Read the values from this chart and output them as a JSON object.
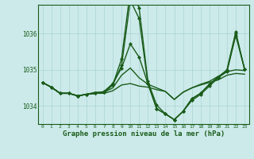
{
  "background_color": "#cceaea",
  "grid_color": "#aad4d4",
  "line_color": "#1a5c1a",
  "marker_color": "#1a5c1a",
  "xlabel": "Graphe pression niveau de la mer (hPa)",
  "xlabel_fontsize": 6.5,
  "xlim": [
    -0.5,
    23.5
  ],
  "ylim": [
    1033.5,
    1036.8
  ],
  "yticks": [
    1034,
    1035,
    1036
  ],
  "ytick_labels": [
    "1034",
    "1035",
    "1036"
  ],
  "xticks": [
    0,
    1,
    2,
    3,
    4,
    5,
    6,
    7,
    8,
    9,
    10,
    11,
    12,
    13,
    14,
    15,
    16,
    17,
    18,
    19,
    20,
    21,
    22,
    23
  ],
  "series": [
    {
      "y": [
        1034.65,
        1034.52,
        1034.35,
        1034.35,
        1034.28,
        1034.32,
        1034.35,
        1034.35,
        1034.42,
        1034.58,
        1034.62,
        1034.55,
        1034.52,
        1034.45,
        1034.4,
        1034.18,
        1034.38,
        1034.5,
        1034.58,
        1034.65,
        1034.72,
        1034.85,
        1034.9,
        1034.88
      ],
      "markers": false,
      "lw": 1.0
    },
    {
      "y": [
        1034.65,
        1034.52,
        1034.35,
        1034.35,
        1034.28,
        1034.32,
        1034.38,
        1034.38,
        1034.5,
        1034.85,
        1035.05,
        1034.78,
        1034.6,
        1034.5,
        1034.4,
        1034.18,
        1034.38,
        1034.5,
        1034.6,
        1034.68,
        1034.82,
        1034.95,
        1035.0,
        1034.98
      ],
      "markers": false,
      "lw": 1.0
    },
    {
      "y": [
        1034.65,
        1034.52,
        1034.35,
        1034.35,
        1034.28,
        1034.32,
        1034.35,
        1034.4,
        1034.62,
        1035.05,
        1035.72,
        1035.35,
        1034.62,
        1033.92,
        1033.78,
        1033.62,
        1033.85,
        1034.15,
        1034.32,
        1034.55,
        1034.78,
        1034.95,
        1035.95,
        1035.02
      ],
      "markers": true,
      "lw": 1.0
    },
    {
      "y": [
        1034.65,
        1034.52,
        1034.35,
        1034.35,
        1034.28,
        1034.32,
        1034.35,
        1034.38,
        1034.58,
        1035.12,
        1036.92,
        1036.42,
        1034.62,
        1033.92,
        1033.78,
        1033.62,
        1033.85,
        1034.2,
        1034.35,
        1034.6,
        1034.8,
        1034.98,
        1036.0,
        1035.02
      ],
      "markers": true,
      "lw": 1.0
    },
    {
      "y": [
        1034.65,
        1034.52,
        1034.35,
        1034.35,
        1034.28,
        1034.32,
        1034.35,
        1034.38,
        1034.58,
        1035.3,
        1037.2,
        1036.72,
        1034.68,
        1034.02,
        1033.78,
        1033.62,
        1033.85,
        1034.2,
        1034.35,
        1034.6,
        1034.8,
        1035.0,
        1036.05,
        1035.02
      ],
      "markers": true,
      "lw": 1.0
    }
  ]
}
